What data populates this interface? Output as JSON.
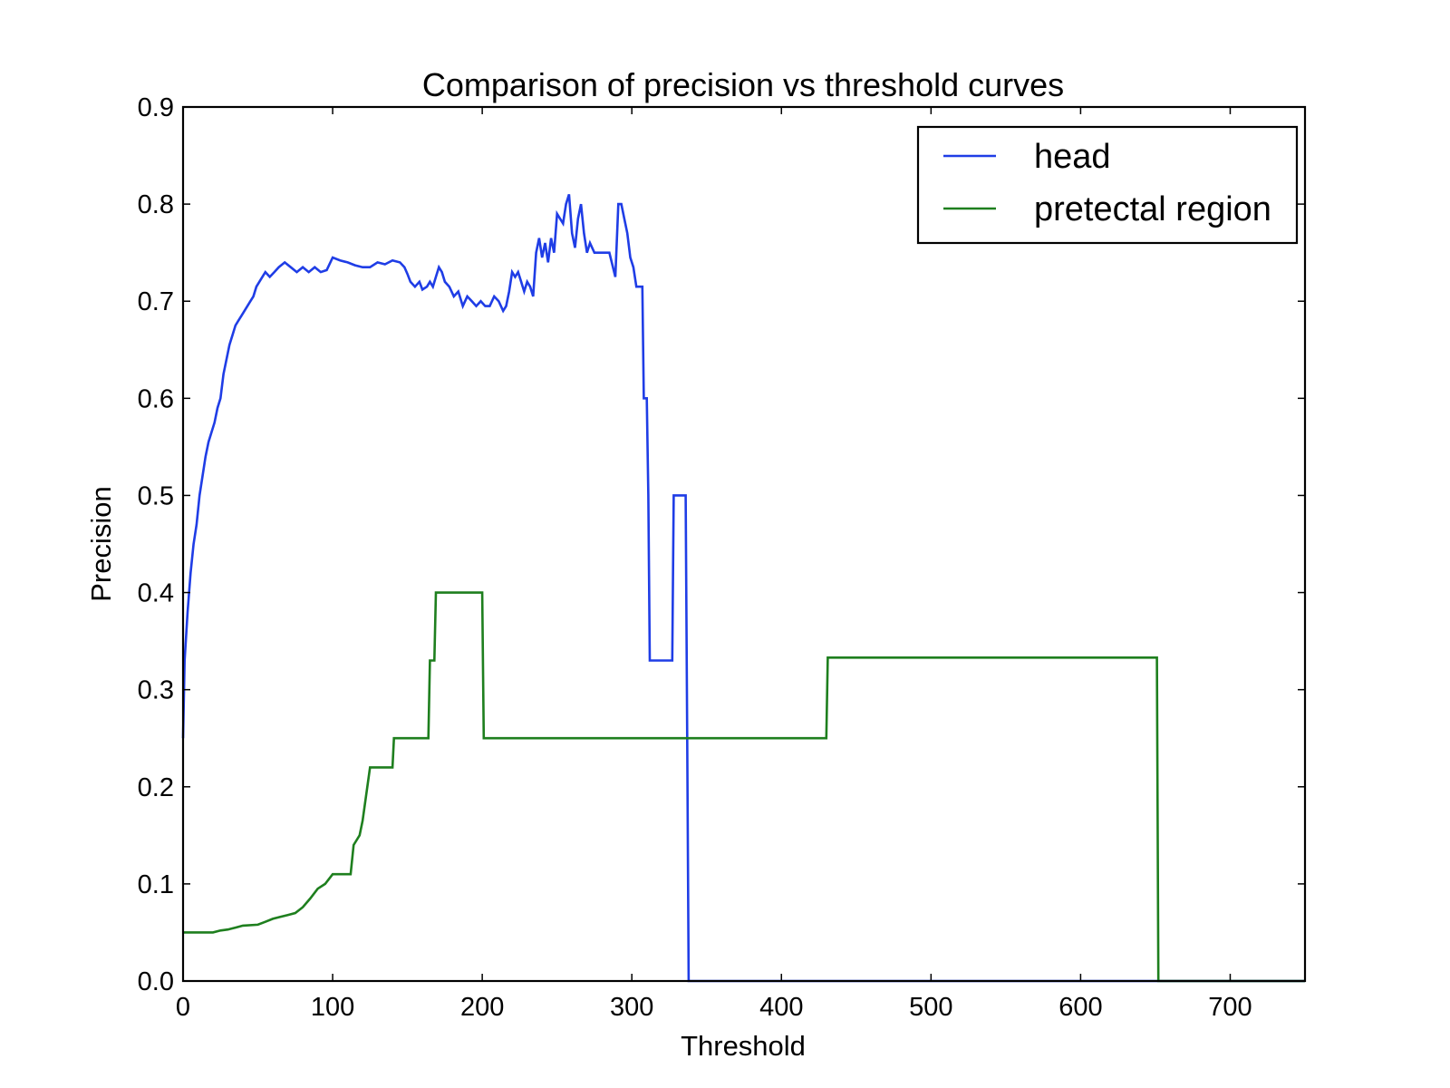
{
  "chart_data": {
    "type": "line",
    "title": "Comparison of precision vs threshold curves",
    "xlabel": "Threshold",
    "ylabel": "Precision",
    "xlim": [
      0,
      750
    ],
    "ylim": [
      0,
      0.9
    ],
    "x_ticks": [
      "0",
      "100",
      "200",
      "300",
      "400",
      "500",
      "600",
      "700"
    ],
    "x_tick_values": [
      0,
      100,
      200,
      300,
      400,
      500,
      600,
      700
    ],
    "y_ticks": [
      "0.0",
      "0.1",
      "0.2",
      "0.3",
      "0.4",
      "0.5",
      "0.6",
      "0.7",
      "0.8",
      "0.9"
    ],
    "y_tick_values": [
      0,
      0.1,
      0.2,
      0.3,
      0.4,
      0.5,
      0.6,
      0.7,
      0.8,
      0.9
    ],
    "grid": false,
    "legend": "top-right",
    "series": [
      {
        "name": "head",
        "color": "#1f3de6",
        "points": [
          [
            0,
            0.25
          ],
          [
            1,
            0.33
          ],
          [
            3,
            0.38
          ],
          [
            5,
            0.42
          ],
          [
            7,
            0.45
          ],
          [
            9,
            0.47
          ],
          [
            11,
            0.5
          ],
          [
            13,
            0.52
          ],
          [
            15,
            0.54
          ],
          [
            17,
            0.555
          ],
          [
            19,
            0.565
          ],
          [
            21,
            0.575
          ],
          [
            23,
            0.59
          ],
          [
            25,
            0.6
          ],
          [
            27,
            0.625
          ],
          [
            29,
            0.64
          ],
          [
            31,
            0.655
          ],
          [
            33,
            0.665
          ],
          [
            35,
            0.675
          ],
          [
            37,
            0.68
          ],
          [
            39,
            0.685
          ],
          [
            41,
            0.69
          ],
          [
            43,
            0.695
          ],
          [
            45,
            0.7
          ],
          [
            47,
            0.705
          ],
          [
            49,
            0.715
          ],
          [
            51,
            0.72
          ],
          [
            53,
            0.725
          ],
          [
            55,
            0.73
          ],
          [
            58,
            0.725
          ],
          [
            61,
            0.73
          ],
          [
            64,
            0.735
          ],
          [
            68,
            0.74
          ],
          [
            72,
            0.735
          ],
          [
            76,
            0.73
          ],
          [
            80,
            0.735
          ],
          [
            84,
            0.73
          ],
          [
            88,
            0.735
          ],
          [
            92,
            0.73
          ],
          [
            96,
            0.732
          ],
          [
            100,
            0.745
          ],
          [
            105,
            0.742
          ],
          [
            110,
            0.74
          ],
          [
            115,
            0.737
          ],
          [
            120,
            0.735
          ],
          [
            125,
            0.735
          ],
          [
            130,
            0.74
          ],
          [
            135,
            0.738
          ],
          [
            140,
            0.742
          ],
          [
            145,
            0.74
          ],
          [
            148,
            0.735
          ],
          [
            150,
            0.728
          ],
          [
            152,
            0.72
          ],
          [
            155,
            0.715
          ],
          [
            158,
            0.72
          ],
          [
            160,
            0.712
          ],
          [
            163,
            0.715
          ],
          [
            165,
            0.72
          ],
          [
            167,
            0.715
          ],
          [
            169,
            0.725
          ],
          [
            171,
            0.735
          ],
          [
            173,
            0.73
          ],
          [
            175,
            0.72
          ],
          [
            178,
            0.715
          ],
          [
            181,
            0.705
          ],
          [
            184,
            0.71
          ],
          [
            187,
            0.695
          ],
          [
            190,
            0.705
          ],
          [
            193,
            0.7
          ],
          [
            196,
            0.695
          ],
          [
            199,
            0.7
          ],
          [
            202,
            0.695
          ],
          [
            205,
            0.695
          ],
          [
            208,
            0.705
          ],
          [
            211,
            0.7
          ],
          [
            214,
            0.69
          ],
          [
            216,
            0.695
          ],
          [
            218,
            0.71
          ],
          [
            220,
            0.73
          ],
          [
            222,
            0.725
          ],
          [
            224,
            0.73
          ],
          [
            226,
            0.72
          ],
          [
            228,
            0.71
          ],
          [
            230,
            0.72
          ],
          [
            232,
            0.715
          ],
          [
            234,
            0.705
          ],
          [
            236,
            0.75
          ],
          [
            238,
            0.765
          ],
          [
            240,
            0.745
          ],
          [
            242,
            0.76
          ],
          [
            244,
            0.74
          ],
          [
            246,
            0.765
          ],
          [
            248,
            0.75
          ],
          [
            250,
            0.79
          ],
          [
            252,
            0.785
          ],
          [
            254,
            0.78
          ],
          [
            256,
            0.8
          ],
          [
            258,
            0.81
          ],
          [
            260,
            0.77
          ],
          [
            262,
            0.755
          ],
          [
            264,
            0.785
          ],
          [
            266,
            0.8
          ],
          [
            268,
            0.77
          ],
          [
            270,
            0.75
          ],
          [
            272,
            0.76
          ],
          [
            275,
            0.75
          ],
          [
            280,
            0.75
          ],
          [
            285,
            0.75
          ],
          [
            289,
            0.725
          ],
          [
            291,
            0.8
          ],
          [
            293,
            0.8
          ],
          [
            295,
            0.785
          ],
          [
            297,
            0.77
          ],
          [
            299,
            0.745
          ],
          [
            301,
            0.735
          ],
          [
            303,
            0.715
          ],
          [
            307,
            0.715
          ],
          [
            308,
            0.6
          ],
          [
            310,
            0.6
          ],
          [
            311,
            0.5
          ],
          [
            312,
            0.33
          ],
          [
            327,
            0.33
          ],
          [
            328,
            0.5
          ],
          [
            336,
            0.5
          ],
          [
            337,
            0.25
          ],
          [
            338,
            0.0
          ],
          [
            750,
            0.0
          ]
        ]
      },
      {
        "name": "pretectal region",
        "color": "#1e7f1e",
        "points": [
          [
            0,
            0.05
          ],
          [
            20,
            0.05
          ],
          [
            25,
            0.052
          ],
          [
            30,
            0.053
          ],
          [
            35,
            0.055
          ],
          [
            40,
            0.057
          ],
          [
            50,
            0.058
          ],
          [
            55,
            0.061
          ],
          [
            60,
            0.064
          ],
          [
            65,
            0.066
          ],
          [
            70,
            0.068
          ],
          [
            75,
            0.07
          ],
          [
            80,
            0.076
          ],
          [
            85,
            0.085
          ],
          [
            90,
            0.095
          ],
          [
            95,
            0.1
          ],
          [
            100,
            0.11
          ],
          [
            112,
            0.11
          ],
          [
            114,
            0.14
          ],
          [
            118,
            0.15
          ],
          [
            120,
            0.165
          ],
          [
            125,
            0.22
          ],
          [
            140,
            0.22
          ],
          [
            141,
            0.25
          ],
          [
            164,
            0.25
          ],
          [
            165,
            0.33
          ],
          [
            168,
            0.33
          ],
          [
            169,
            0.4
          ],
          [
            200,
            0.4
          ],
          [
            201,
            0.25
          ],
          [
            430,
            0.25
          ],
          [
            431,
            0.333
          ],
          [
            651,
            0.333
          ],
          [
            652,
            0.0
          ],
          [
            750,
            0.0
          ]
        ]
      }
    ]
  }
}
